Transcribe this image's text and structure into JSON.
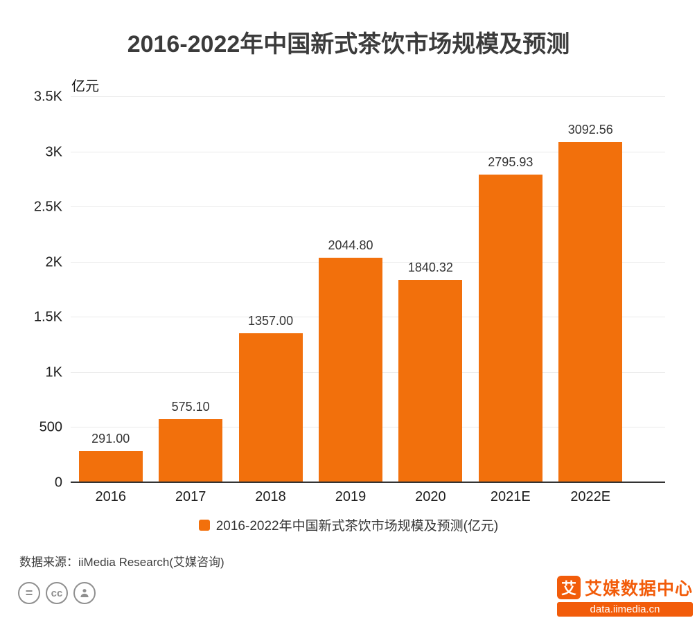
{
  "chart_data": {
    "type": "bar",
    "title": "2016-2022年中国新式茶饮市场规模及预测",
    "unit_label": "亿元",
    "categories": [
      "2016",
      "2017",
      "2018",
      "2019",
      "2020",
      "2021E",
      "2022E"
    ],
    "values": [
      291.0,
      575.1,
      1357.0,
      2044.8,
      1840.32,
      2795.93,
      3092.56
    ],
    "value_labels": [
      "291.00",
      "575.10",
      "1357.00",
      "2044.80",
      "1840.32",
      "2795.93",
      "3092.56"
    ],
    "ylim": [
      0,
      3500
    ],
    "yticks": [
      0,
      500,
      1000,
      1500,
      2000,
      2500,
      3000,
      3500
    ],
    "ytick_labels": [
      "0",
      "500",
      "1K",
      "1.5K",
      "2K",
      "2.5K",
      "3K",
      "3.5K"
    ],
    "grid": true,
    "legend": {
      "label": "2016-2022年中国新式茶饮市场规模及预测(亿元)",
      "position": "bottom"
    },
    "bar_color": "#f2700c"
  },
  "footer": {
    "source": "数据来源：iiMedia Research(艾媒咨询)",
    "license_icons": [
      {
        "name": "equals-icon",
        "glyph": "="
      },
      {
        "name": "cc-icon",
        "glyph": "cc"
      },
      {
        "name": "person-icon",
        "glyph": "person"
      }
    ],
    "brand": {
      "name": "艾媒数据中心",
      "url": "data.iimedia.cn",
      "logo_glyph": "艾",
      "color": "#f25c0a"
    }
  }
}
